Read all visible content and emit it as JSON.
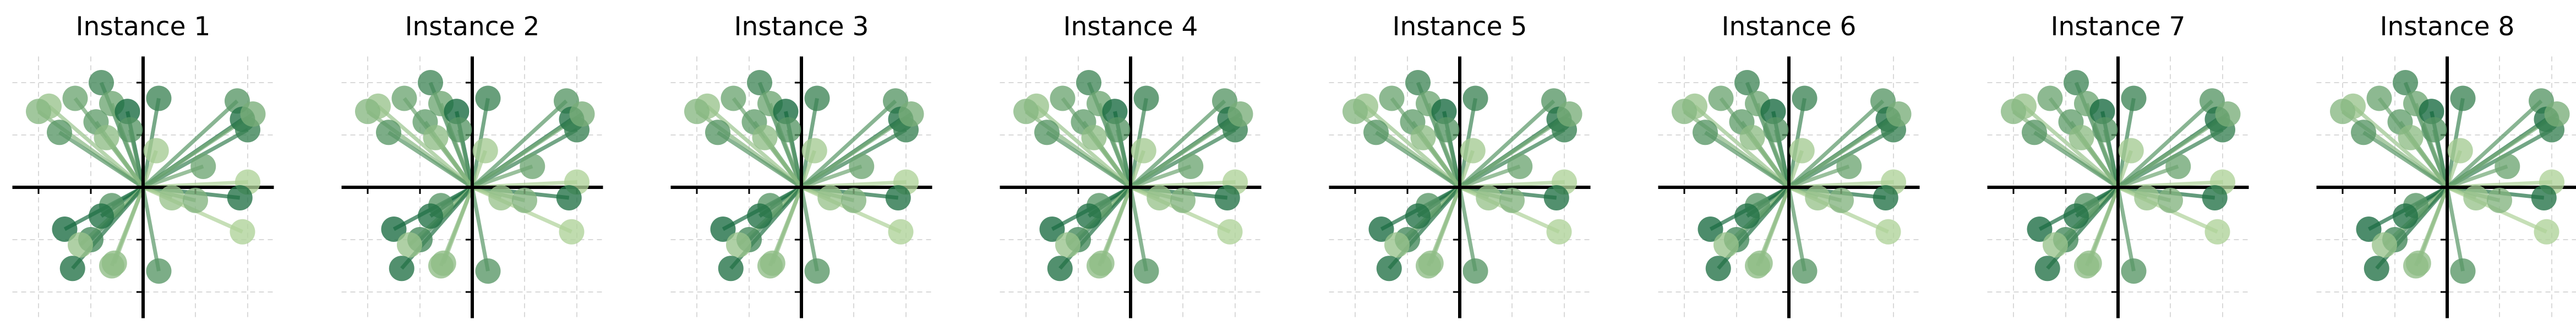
{
  "figure": {
    "panel_titles": [
      "Instance 1",
      "Instance 2",
      "Instance 3",
      "Instance 4",
      "Instance 5",
      "Instance 6",
      "Instance 7",
      "Instance 8"
    ]
  },
  "chart_data": {
    "type": "scatter",
    "subtype": "vectors-from-origin (identical across all 8 panels)",
    "panels": 8,
    "xlim": [
      -2.5,
      2.5
    ],
    "ylim": [
      -2.5,
      2.5
    ],
    "ticks": [
      -2,
      -1,
      1,
      2
    ],
    "grid": true,
    "grid_style": "dashed light gray",
    "axes_through_origin": true,
    "colormap": "Greens",
    "points": [
      {
        "x": -0.8,
        "y": 2.0,
        "shade": 0.7
      },
      {
        "x": -1.3,
        "y": 1.7,
        "shade": 0.5
      },
      {
        "x": -0.6,
        "y": 1.6,
        "shade": 0.5
      },
      {
        "x": 0.3,
        "y": 1.7,
        "shade": 0.72
      },
      {
        "x": -0.3,
        "y": 1.45,
        "shade": 0.9
      },
      {
        "x": -1.8,
        "y": 1.55,
        "shade": 0.3
      },
      {
        "x": -0.9,
        "y": 1.25,
        "shade": 0.55
      },
      {
        "x": -2.0,
        "y": 1.45,
        "shade": 0.38
      },
      {
        "x": -0.25,
        "y": 1.1,
        "shade": 0.6
      },
      {
        "x": -1.6,
        "y": 1.05,
        "shade": 0.6
      },
      {
        "x": -0.7,
        "y": 0.95,
        "shade": 0.35
      },
      {
        "x": 0.25,
        "y": 0.7,
        "shade": 0.25
      },
      {
        "x": 1.8,
        "y": 1.65,
        "shade": 0.6
      },
      {
        "x": 1.9,
        "y": 1.3,
        "shade": 0.85
      },
      {
        "x": 2.0,
        "y": 1.1,
        "shade": 0.75
      },
      {
        "x": 2.1,
        "y": 1.4,
        "shade": 0.45
      },
      {
        "x": 1.15,
        "y": 0.4,
        "shade": 0.5
      },
      {
        "x": 2.0,
        "y": 0.1,
        "shade": 0.2
      },
      {
        "x": 1.85,
        "y": -0.2,
        "shade": 0.85
      },
      {
        "x": 0.55,
        "y": -0.2,
        "shade": 0.3
      },
      {
        "x": 1.0,
        "y": -0.25,
        "shade": 0.4
      },
      {
        "x": 1.9,
        "y": -0.85,
        "shade": 0.2
      },
      {
        "x": -0.6,
        "y": -0.35,
        "shade": 0.6
      },
      {
        "x": -0.8,
        "y": -0.55,
        "shade": 0.85
      },
      {
        "x": -1.5,
        "y": -0.8,
        "shade": 0.88
      },
      {
        "x": -1.0,
        "y": -1.0,
        "shade": 0.7
      },
      {
        "x": -1.2,
        "y": -1.1,
        "shade": 0.3
      },
      {
        "x": -0.6,
        "y": -1.5,
        "shade": 0.35
      },
      {
        "x": -1.35,
        "y": -1.55,
        "shade": 0.85
      },
      {
        "x": -0.55,
        "y": -1.45,
        "shade": 0.35
      },
      {
        "x": 0.3,
        "y": -1.6,
        "shade": 0.6
      }
    ]
  }
}
